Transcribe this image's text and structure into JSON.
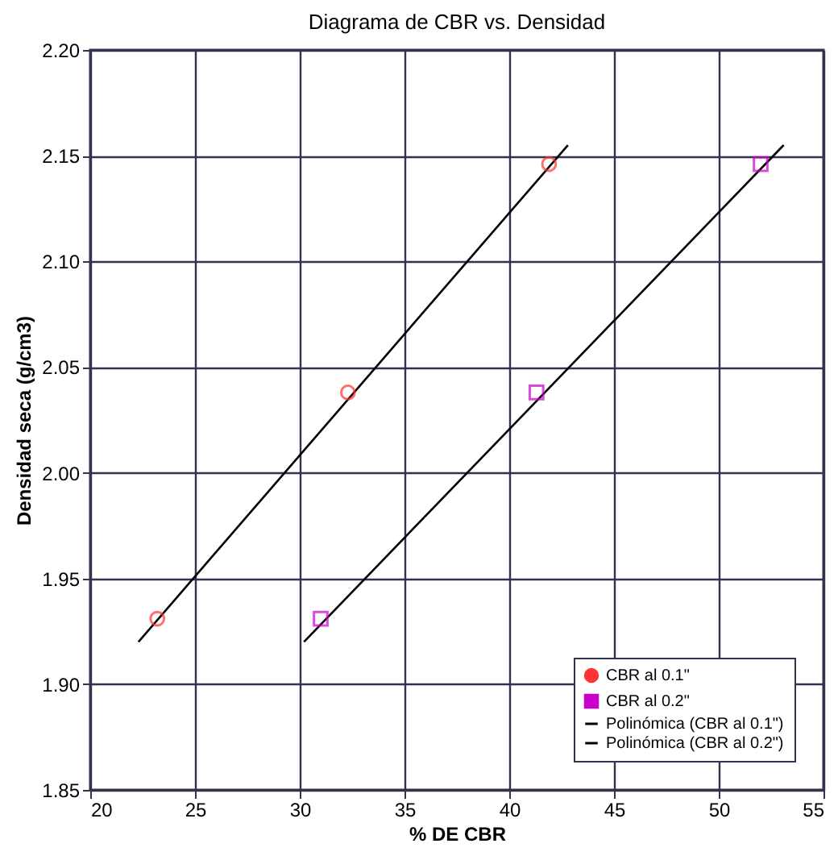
{
  "chart_data": {
    "type": "scatter",
    "title": "Diagrama de CBR vs. Densidad",
    "xlabel": "% DE CBR",
    "ylabel": "Densidad seca (g/cm3)",
    "series": [
      {
        "name": "CBR al 0.1\"",
        "marker": "circle",
        "color": "#ff3333",
        "x": [
          23.2,
          32.3,
          41.9
        ],
        "values": [
          1.931,
          2.038,
          2.146
        ]
      },
      {
        "name": "CBR al 0.2\"",
        "marker": "square",
        "color": "#cc00cc",
        "x": [
          31.0,
          41.3,
          52.0
        ],
        "values": [
          1.931,
          2.038,
          2.146
        ]
      },
      {
        "name": "Polinómica (CBR al 0.1\")",
        "type": "line",
        "marker": "none",
        "color": "#000000",
        "x": [
          22.3,
          42.8
        ],
        "values": [
          1.92,
          2.155
        ]
      },
      {
        "name": "Polinómica (CBR al 0.2\")",
        "type": "line",
        "marker": "none",
        "color": "#000000",
        "x": [
          30.2,
          53.1
        ],
        "values": [
          1.92,
          2.155
        ]
      }
    ],
    "xlim": [
      20,
      55
    ],
    "xticks": [
      20,
      25,
      30,
      35,
      40,
      45,
      50,
      55
    ],
    "ylim": [
      1.85,
      2.2
    ],
    "yticks": [
      {
        "value": 1.85,
        "label": "1.85"
      },
      {
        "value": 1.9,
        "label": "1.90"
      },
      {
        "value": 1.95,
        "label": "1.95"
      },
      {
        "value": 2.0,
        "label": "2.00"
      },
      {
        "value": 2.05,
        "label": "2.05"
      },
      {
        "value": 2.1,
        "label": "2.10"
      },
      {
        "value": 2.15,
        "label": "2.15"
      },
      {
        "value": 2.2,
        "label": "2.20"
      }
    ],
    "grid": true,
    "legend": "bottom right"
  }
}
